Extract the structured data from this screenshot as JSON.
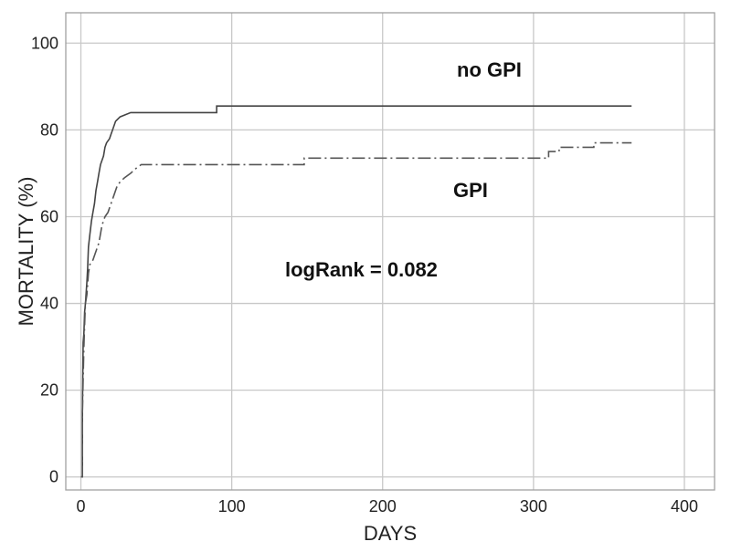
{
  "chart_data": {
    "type": "line",
    "xlabel": "DAYS",
    "ylabel": "MORTALITY (%)",
    "xlim": [
      -10,
      420
    ],
    "ylim": [
      -3,
      107
    ],
    "x_ticks": [
      0,
      100,
      200,
      300,
      400
    ],
    "y_ticks": [
      0,
      20,
      40,
      60,
      80,
      100
    ],
    "grid": true,
    "annotations": [
      "no GPI",
      "GPI",
      "logRank = 0.082"
    ],
    "series": [
      {
        "name": "no GPI",
        "color": "#444444",
        "style": "solid",
        "points": [
          [
            0,
            0
          ],
          [
            1,
            0
          ],
          [
            1,
            15
          ],
          [
            1.5,
            31
          ],
          [
            2,
            33
          ],
          [
            2.5,
            38
          ],
          [
            3,
            40
          ],
          [
            4,
            45
          ],
          [
            4.5,
            48
          ],
          [
            5,
            53
          ],
          [
            6,
            56
          ],
          [
            7,
            59
          ],
          [
            8,
            61
          ],
          [
            9,
            63
          ],
          [
            10,
            66
          ],
          [
            11,
            68
          ],
          [
            12,
            70
          ],
          [
            13,
            72
          ],
          [
            15,
            74
          ],
          [
            16,
            76
          ],
          [
            17,
            77
          ],
          [
            19,
            78
          ],
          [
            20,
            79
          ],
          [
            21,
            80
          ],
          [
            23,
            82
          ],
          [
            26,
            83
          ],
          [
            33,
            84
          ],
          [
            90,
            84
          ],
          [
            90,
            85.5
          ],
          [
            365,
            85.5
          ]
        ]
      },
      {
        "name": "GPI",
        "color": "#555555",
        "style": "dashdot",
        "points": [
          [
            0,
            0
          ],
          [
            1,
            0
          ],
          [
            1,
            15
          ],
          [
            2,
            30
          ],
          [
            2.5,
            35
          ],
          [
            3,
            40
          ],
          [
            4,
            42
          ],
          [
            5,
            47
          ],
          [
            6,
            49
          ],
          [
            8,
            50
          ],
          [
            10,
            52
          ],
          [
            12,
            54
          ],
          [
            14,
            58
          ],
          [
            16,
            60
          ],
          [
            18,
            61
          ],
          [
            20,
            63
          ],
          [
            22,
            65
          ],
          [
            24,
            67
          ],
          [
            26,
            68
          ],
          [
            29,
            69
          ],
          [
            33,
            70
          ],
          [
            36,
            71
          ],
          [
            40,
            72
          ],
          [
            148,
            72
          ],
          [
            148,
            73.5
          ],
          [
            310,
            73.5
          ],
          [
            310,
            75
          ],
          [
            317,
            75
          ],
          [
            317,
            76
          ],
          [
            340,
            76
          ],
          [
            340,
            77
          ],
          [
            365,
            77
          ]
        ]
      }
    ]
  }
}
